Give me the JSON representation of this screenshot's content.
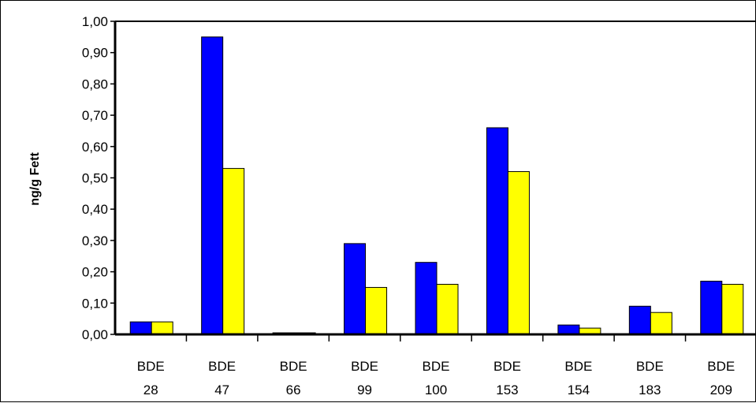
{
  "chart_data": {
    "type": "bar",
    "title": "",
    "xlabel": "",
    "ylabel": "ng/g Fett",
    "ylim": [
      0,
      1.0
    ],
    "yticks": [
      "0,00",
      "0,10",
      "0,20",
      "0,30",
      "0,40",
      "0,50",
      "0,60",
      "0,70",
      "0,80",
      "0,90",
      "1,00"
    ],
    "grid": false,
    "legend": "none",
    "categories": [
      [
        "BDE",
        "28"
      ],
      [
        "BDE",
        "47"
      ],
      [
        "BDE",
        "66"
      ],
      [
        "BDE",
        "99"
      ],
      [
        "BDE",
        "100"
      ],
      [
        "BDE",
        "153"
      ],
      [
        "BDE",
        "154"
      ],
      [
        "BDE",
        "183"
      ],
      [
        "BDE",
        "209"
      ]
    ],
    "series": [
      {
        "color": "#0000ff",
        "values": [
          0.04,
          0.95,
          0.005,
          0.29,
          0.23,
          0.66,
          0.03,
          0.09,
          0.17
        ]
      },
      {
        "color": "#ffff00",
        "values": [
          0.04,
          0.53,
          0.005,
          0.15,
          0.16,
          0.52,
          0.02,
          0.07,
          0.16
        ]
      }
    ]
  }
}
